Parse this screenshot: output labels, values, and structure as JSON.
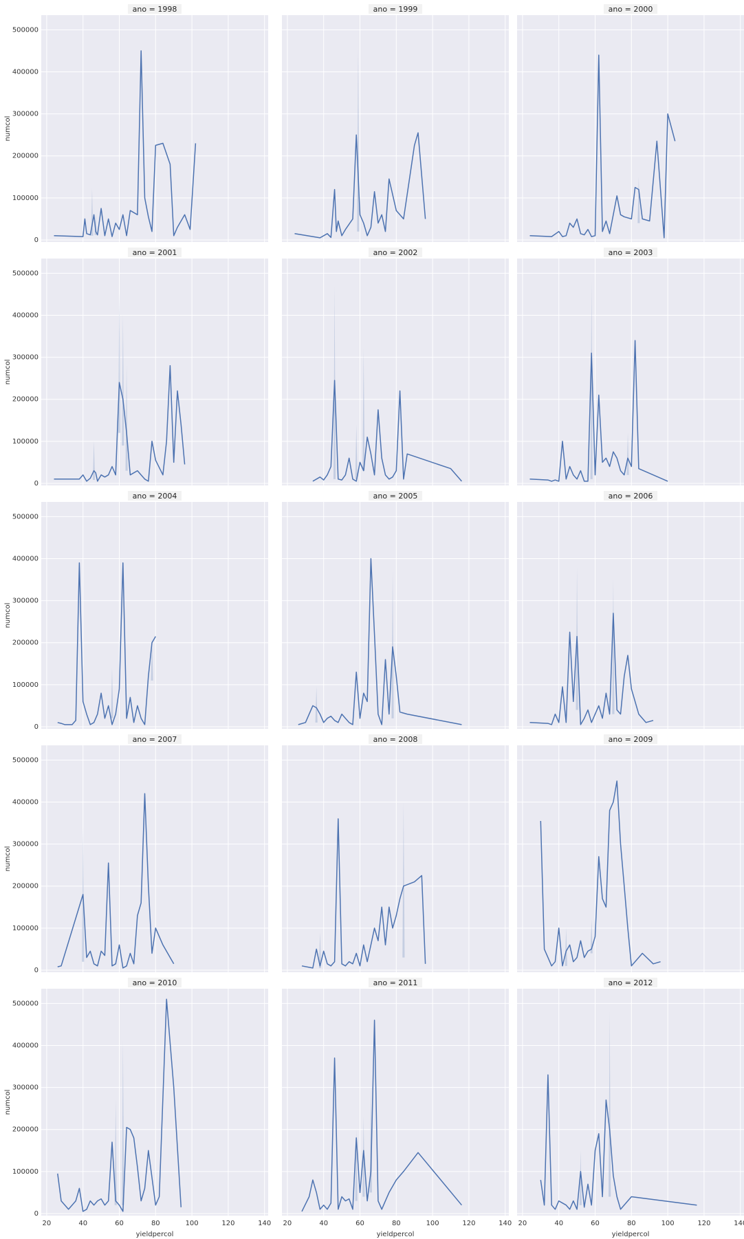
{
  "figure": {
    "colors": {
      "panel_bg": "#eaeaf2",
      "grid": "#ffffff",
      "line": "#4c72b0",
      "band": "#a6b6d6",
      "title_bg": "#f2f2f2"
    },
    "xlabel": "yieldpercol",
    "ylabel": "numcol"
  },
  "chart_data": {
    "type": "line",
    "layout": "facet-grid 5x3",
    "facet_variable": "ano",
    "xlabel": "yieldpercol",
    "ylabel": "numcol",
    "xlim": [
      17,
      142
    ],
    "ylim": [
      -5000,
      535000
    ],
    "x_ticks": [
      20,
      40,
      60,
      80,
      100,
      120,
      140
    ],
    "y_ticks": [
      0,
      100000,
      200000,
      300000,
      400000,
      500000
    ],
    "grid": true,
    "legend": "none",
    "panels": [
      {
        "title": "ano = 1998",
        "x": [
          24,
          40,
          41,
          42,
          44,
          46,
          47,
          48,
          50,
          52,
          54,
          56,
          58,
          60,
          62,
          64,
          66,
          70,
          72,
          74,
          76,
          78,
          80,
          84,
          88,
          90,
          92,
          96,
          99,
          102
        ],
        "y": [
          10000,
          8000,
          50000,
          15000,
          12000,
          60000,
          20000,
          12000,
          75000,
          10000,
          50000,
          8000,
          40000,
          25000,
          60000,
          10000,
          70000,
          60000,
          450000,
          100000,
          55000,
          20000,
          225000,
          230000,
          180000,
          10000,
          30000,
          60000,
          25000,
          230000
        ],
        "band": [
          [
            45,
            122000,
            10000
          ],
          [
            47,
            60000,
            12000
          ]
        ]
      },
      {
        "title": "ano = 1999",
        "x": [
          24,
          38,
          42,
          44,
          46,
          47,
          48,
          50,
          52,
          56,
          58,
          60,
          62,
          64,
          66,
          68,
          70,
          72,
          74,
          76,
          80,
          84,
          90,
          92,
          96
        ],
        "y": [
          15000,
          5000,
          15000,
          6000,
          120000,
          20000,
          45000,
          10000,
          25000,
          50000,
          250000,
          60000,
          40000,
          10000,
          30000,
          115000,
          40000,
          60000,
          20000,
          145000,
          70000,
          50000,
          225000,
          255000,
          50000
        ],
        "band": [
          [
            59,
            455000,
            20000
          ]
        ]
      },
      {
        "title": "ano = 2000",
        "x": [
          24,
          36,
          40,
          42,
          44,
          46,
          48,
          50,
          52,
          54,
          56,
          58,
          60,
          62,
          64,
          66,
          68,
          72,
          74,
          76,
          80,
          82,
          84,
          86,
          90,
          94,
          98,
          100,
          104
        ],
        "y": [
          10000,
          8000,
          20000,
          8000,
          10000,
          40000,
          30000,
          50000,
          15000,
          12000,
          25000,
          8000,
          10000,
          440000,
          20000,
          45000,
          15000,
          105000,
          60000,
          55000,
          50000,
          125000,
          120000,
          50000,
          45000,
          235000,
          5000,
          300000,
          235000
        ],
        "band": [
          [
            84,
            150000,
            40000
          ]
        ]
      },
      {
        "title": "ano = 2001",
        "x": [
          24,
          38,
          40,
          42,
          44,
          46,
          47,
          48,
          50,
          52,
          54,
          56,
          58,
          60,
          62,
          64,
          66,
          68,
          70,
          72,
          74,
          76,
          78,
          80,
          84,
          86,
          88,
          90,
          92,
          94,
          96
        ],
        "y": [
          10000,
          10000,
          20000,
          5000,
          12000,
          30000,
          25000,
          5000,
          20000,
          15000,
          20000,
          40000,
          20000,
          240000,
          200000,
          120000,
          20000,
          25000,
          30000,
          20000,
          10000,
          5000,
          100000,
          55000,
          20000,
          100000,
          280000,
          50000,
          220000,
          140000,
          45000
        ],
        "band": [
          [
            46,
            100000,
            8000
          ],
          [
            60,
            455000,
            120000
          ],
          [
            62,
            400000,
            90000
          ],
          [
            64,
            280000,
            30000
          ]
        ]
      },
      {
        "title": "ano = 2002",
        "x": [
          34,
          36,
          38,
          40,
          42,
          44,
          46,
          48,
          50,
          52,
          54,
          56,
          58,
          60,
          62,
          64,
          66,
          68,
          70,
          72,
          74,
          76,
          78,
          80,
          82,
          84,
          86,
          110,
          116
        ],
        "y": [
          5000,
          10000,
          15000,
          8000,
          20000,
          40000,
          245000,
          10000,
          8000,
          20000,
          60000,
          10000,
          5000,
          50000,
          30000,
          110000,
          70000,
          20000,
          175000,
          60000,
          20000,
          10000,
          15000,
          30000,
          220000,
          10000,
          70000,
          35000,
          5000
        ],
        "band": [
          [
            46,
            470000,
            10000
          ],
          [
            62,
            320000,
            30000
          ],
          [
            58,
            140000,
            10000
          ]
        ]
      },
      {
        "title": "ano = 2003",
        "x": [
          24,
          34,
          36,
          38,
          40,
          42,
          44,
          46,
          48,
          50,
          52,
          54,
          56,
          58,
          60,
          62,
          64,
          66,
          68,
          70,
          72,
          74,
          76,
          78,
          80,
          82,
          84,
          100
        ],
        "y": [
          10000,
          8000,
          5000,
          8000,
          5000,
          100000,
          10000,
          40000,
          20000,
          10000,
          30000,
          5000,
          5000,
          310000,
          20000,
          210000,
          50000,
          60000,
          40000,
          75000,
          60000,
          30000,
          20000,
          60000,
          40000,
          340000,
          35000,
          5000
        ],
        "band": [
          [
            58,
            480000,
            10000
          ],
          [
            78,
            120000,
            20000
          ]
        ]
      },
      {
        "title": "ano = 2004",
        "x": [
          26,
          28,
          30,
          32,
          34,
          36,
          38,
          40,
          42,
          44,
          46,
          48,
          50,
          52,
          54,
          56,
          58,
          60,
          62,
          64,
          66,
          68,
          70,
          72,
          74,
          76,
          78,
          80
        ],
        "y": [
          10000,
          8000,
          5000,
          5000,
          5000,
          15000,
          390000,
          60000,
          30000,
          5000,
          10000,
          30000,
          80000,
          20000,
          50000,
          5000,
          30000,
          90000,
          390000,
          20000,
          70000,
          10000,
          50000,
          20000,
          5000,
          120000,
          200000,
          215000
        ],
        "band": [
          [
            56,
            140000,
            20000
          ],
          [
            78,
            210000,
            110000
          ]
        ]
      },
      {
        "title": "ano = 2005",
        "x": [
          26,
          30,
          34,
          36,
          38,
          40,
          42,
          44,
          46,
          48,
          50,
          52,
          54,
          56,
          58,
          60,
          62,
          64,
          66,
          68,
          70,
          72,
          74,
          76,
          78,
          80,
          82,
          86,
          116
        ],
        "y": [
          5000,
          10000,
          50000,
          45000,
          30000,
          10000,
          20000,
          25000,
          15000,
          10000,
          30000,
          20000,
          10000,
          5000,
          130000,
          20000,
          80000,
          60000,
          400000,
          220000,
          30000,
          5000,
          160000,
          30000,
          190000,
          120000,
          35000,
          30000,
          5000
        ],
        "band": [
          [
            36,
            95000,
            10000
          ],
          [
            78,
            370000,
            20000
          ]
        ]
      },
      {
        "title": "ano = 2006",
        "x": [
          24,
          34,
          36,
          38,
          40,
          42,
          44,
          46,
          48,
          50,
          52,
          54,
          56,
          58,
          60,
          62,
          64,
          66,
          68,
          70,
          72,
          74,
          76,
          78,
          80,
          84,
          88,
          92
        ],
        "y": [
          10000,
          8000,
          5000,
          30000,
          10000,
          95000,
          10000,
          225000,
          60000,
          215000,
          5000,
          20000,
          40000,
          10000,
          30000,
          50000,
          20000,
          80000,
          30000,
          270000,
          40000,
          30000,
          120000,
          170000,
          90000,
          30000,
          10000,
          15000
        ],
        "band": [
          [
            50,
            380000,
            40000
          ],
          [
            70,
            350000,
            30000
          ]
        ]
      },
      {
        "title": "ano = 2007",
        "x": [
          26,
          28,
          40,
          42,
          44,
          46,
          48,
          50,
          52,
          54,
          56,
          58,
          60,
          62,
          64,
          66,
          68,
          70,
          72,
          74,
          76,
          78,
          80,
          84,
          90
        ],
        "y": [
          8000,
          10000,
          180000,
          30000,
          45000,
          15000,
          10000,
          45000,
          35000,
          255000,
          10000,
          15000,
          60000,
          5000,
          10000,
          40000,
          15000,
          130000,
          160000,
          420000,
          200000,
          40000,
          100000,
          60000,
          15000
        ],
        "band": [
          [
            40,
            340000,
            20000
          ]
        ]
      },
      {
        "title": "ano = 2008",
        "x": [
          28,
          34,
          36,
          38,
          40,
          42,
          44,
          46,
          48,
          50,
          52,
          54,
          56,
          58,
          60,
          62,
          64,
          66,
          68,
          70,
          72,
          74,
          76,
          78,
          80,
          82,
          84,
          90,
          94,
          96
        ],
        "y": [
          10000,
          5000,
          50000,
          10000,
          45000,
          15000,
          10000,
          20000,
          360000,
          15000,
          10000,
          20000,
          15000,
          40000,
          10000,
          60000,
          20000,
          60000,
          100000,
          70000,
          150000,
          60000,
          150000,
          100000,
          130000,
          170000,
          200000,
          210000,
          225000,
          15000
        ],
        "band": [
          [
            38,
            90000,
            5000
          ],
          [
            84,
            400000,
            30000
          ]
        ]
      },
      {
        "title": "ano = 2009",
        "x": [
          30,
          32,
          34,
          36,
          38,
          40,
          42,
          44,
          46,
          48,
          50,
          52,
          54,
          56,
          58,
          60,
          62,
          64,
          66,
          68,
          70,
          72,
          74,
          76,
          78,
          80,
          86,
          92,
          96
        ],
        "y": [
          355000,
          50000,
          30000,
          10000,
          20000,
          100000,
          10000,
          45000,
          60000,
          20000,
          30000,
          70000,
          30000,
          45000,
          50000,
          80000,
          270000,
          170000,
          150000,
          380000,
          400000,
          450000,
          300000,
          200000,
          100000,
          10000,
          40000,
          15000,
          20000
        ],
        "band": [
          [
            44,
            100000,
            10000
          ],
          [
            58,
            120000,
            40000
          ]
        ]
      },
      {
        "title": "ano = 2010",
        "x": [
          26,
          28,
          32,
          34,
          36,
          38,
          40,
          42,
          44,
          46,
          48,
          50,
          52,
          54,
          56,
          58,
          60,
          62,
          64,
          66,
          68,
          70,
          72,
          74,
          76,
          80,
          82,
          86,
          90,
          94
        ],
        "y": [
          95000,
          30000,
          10000,
          20000,
          30000,
          60000,
          5000,
          10000,
          30000,
          20000,
          30000,
          35000,
          20000,
          30000,
          170000,
          30000,
          20000,
          5000,
          205000,
          200000,
          180000,
          110000,
          30000,
          60000,
          150000,
          20000,
          40000,
          510000,
          300000,
          15000
        ],
        "band": [
          [
            58,
            270000,
            20000
          ],
          [
            62,
            410000,
            20000
          ]
        ]
      },
      {
        "title": "ano = 2011",
        "x": [
          28,
          32,
          34,
          36,
          38,
          40,
          42,
          44,
          46,
          48,
          50,
          52,
          54,
          56,
          58,
          60,
          62,
          64,
          66,
          68,
          70,
          72,
          74,
          76,
          80,
          84,
          92,
          116
        ],
        "y": [
          5000,
          40000,
          80000,
          50000,
          10000,
          20000,
          10000,
          25000,
          370000,
          10000,
          40000,
          30000,
          35000,
          10000,
          180000,
          50000,
          150000,
          30000,
          100000,
          460000,
          30000,
          10000,
          30000,
          50000,
          80000,
          100000,
          145000,
          20000
        ],
        "band": [
          [
            58,
            200000,
            30000
          ],
          [
            62,
            230000,
            40000
          ],
          [
            66,
            300000,
            50000
          ]
        ]
      },
      {
        "title": "ano = 2012",
        "x": [
          30,
          32,
          34,
          36,
          38,
          40,
          42,
          44,
          46,
          48,
          50,
          52,
          54,
          56,
          58,
          60,
          62,
          64,
          66,
          68,
          70,
          72,
          74,
          80,
          116
        ],
        "y": [
          80000,
          20000,
          330000,
          20000,
          10000,
          30000,
          25000,
          20000,
          10000,
          30000,
          10000,
          100000,
          15000,
          70000,
          20000,
          150000,
          190000,
          40000,
          270000,
          200000,
          90000,
          40000,
          10000,
          40000,
          20000
        ],
        "band": [
          [
            52,
            150000,
            20000
          ],
          [
            68,
            480000,
            40000
          ]
        ]
      }
    ]
  }
}
